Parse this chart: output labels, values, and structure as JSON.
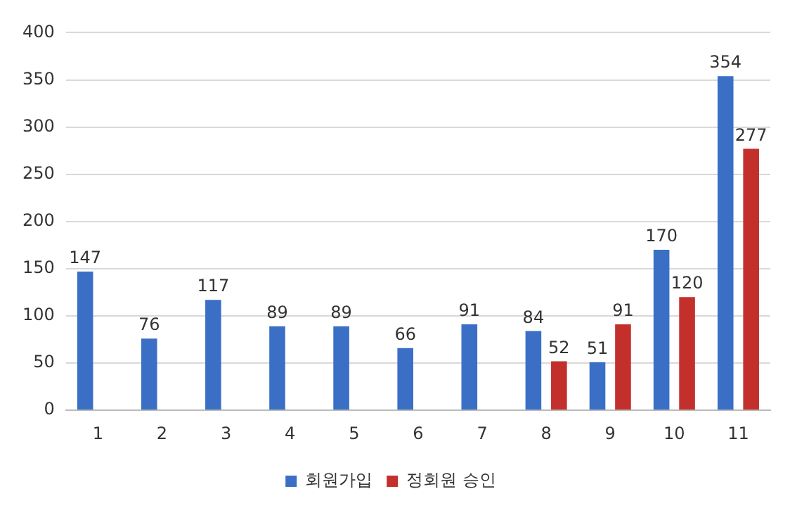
{
  "chart_data": {
    "type": "bar",
    "categories": [
      "1",
      "2",
      "3",
      "4",
      "5",
      "6",
      "7",
      "8",
      "9",
      "10",
      "11"
    ],
    "series": [
      {
        "name": "회원가입",
        "color": "#3b6fc6",
        "values": [
          147,
          76,
          117,
          89,
          89,
          66,
          91,
          84,
          51,
          170,
          354
        ]
      },
      {
        "name": "정회원 승인",
        "color": "#c3302c",
        "values": [
          null,
          null,
          null,
          null,
          null,
          null,
          null,
          52,
          91,
          120,
          277
        ]
      }
    ],
    "ylim": [
      0,
      400
    ],
    "yticks": [
      0,
      50,
      100,
      150,
      200,
      250,
      300,
      350,
      400
    ],
    "grid": "y",
    "legend": "bottom",
    "data_labels": true
  }
}
